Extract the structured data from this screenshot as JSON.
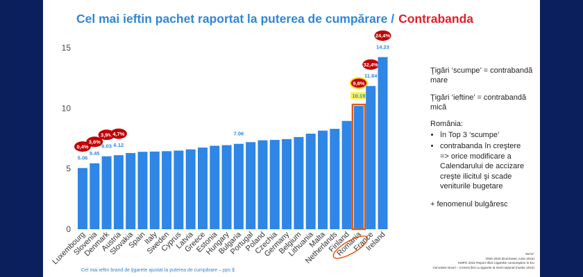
{
  "title": {
    "main": "Cel mai ieftin pachet raportat la puterea de cumpărare /",
    "highlight": "Contrabanda"
  },
  "chart_data": {
    "type": "bar",
    "categories": [
      "Luxembourg",
      "Slovenia",
      "Denmark",
      "Austria",
      "Slovakia",
      "Spain",
      "Italy",
      "Sweden",
      "Cyprus",
      "Latvia",
      "Greece",
      "Estonia",
      "Hungary",
      "Bulgaria",
      "Portugal",
      "Poland",
      "Czechia",
      "Germany",
      "Belgium",
      "Lithuania",
      "Malta",
      "Netherlands",
      "Finland",
      "Romania",
      "France",
      "Ireland"
    ],
    "values": [
      5.06,
      5.45,
      6.03,
      6.12,
      6.3,
      6.4,
      6.42,
      6.45,
      6.5,
      6.6,
      6.75,
      6.9,
      6.95,
      7.06,
      7.2,
      7.35,
      7.38,
      7.45,
      7.62,
      7.9,
      8.15,
      8.3,
      8.95,
      10.19,
      11.84,
      14.23
    ],
    "value_labels": [
      "5.06",
      "5.45",
      "6.03",
      "6.12",
      "",
      "",
      "",
      "",
      "",
      "",
      "",
      "",
      "",
      "7.06",
      "",
      "",
      "",
      "",
      "",
      "",
      "",
      "",
      "",
      "10.19",
      "11.84",
      "14.23"
    ],
    "contraband_labels": [
      "0,4%",
      "3,6%",
      "3,9%",
      "4,7%",
      "",
      "",
      "",
      "",
      "",
      "",
      "",
      "",
      "",
      "",
      "",
      "",
      "",
      "",
      "",
      "",
      "",
      "",
      "",
      "9,8%",
      "32,4%",
      "24,4%"
    ],
    "ylim": [
      0,
      15
    ],
    "yticks": [
      "0",
      "5",
      "10",
      "15"
    ],
    "highlight_category": "Romania",
    "colors": {
      "bar": "#2e86e6",
      "value_label": "#2e86e6",
      "badge": "#c00000",
      "highlight_badge": "#ffd400",
      "highlight_outline": "#e05a10",
      "highlight_value_bg": "#fff24a",
      "axis_text": "#444444",
      "grid": "#d9d9d9"
    },
    "xlabel": "",
    "ylabel": ""
  },
  "notes": {
    "p1": "Ţigări ‘scumpe’ = contrabandă mare",
    "p2": "Ţigări ‘ieftine’ = contrabandă mică",
    "p3": "România:",
    "bullets": [
      "în Top 3 ‘scumpe’",
      "contrabanda în creştere",
      "=> orice modificare a Calendarului de accizare creşte ilicitul şi scade veniturile bugetare"
    ],
    "p4": "+ fenomenul bulgăresc"
  },
  "caption": "Cel mai ieftin brand de ţigarete ajustat la puterea de cumpărare – pps $",
  "sources": {
    "label": "Surse:",
    "lines": [
      "OMS 2020 (Euronews, iunie 2024)",
      "KMPG 2022 Report Illicit Cigarette consumption in EU",
      "Cercetare Novel – Comerţ ilicit cu ţigarete la nivel naţional (martie 2024)"
    ]
  }
}
